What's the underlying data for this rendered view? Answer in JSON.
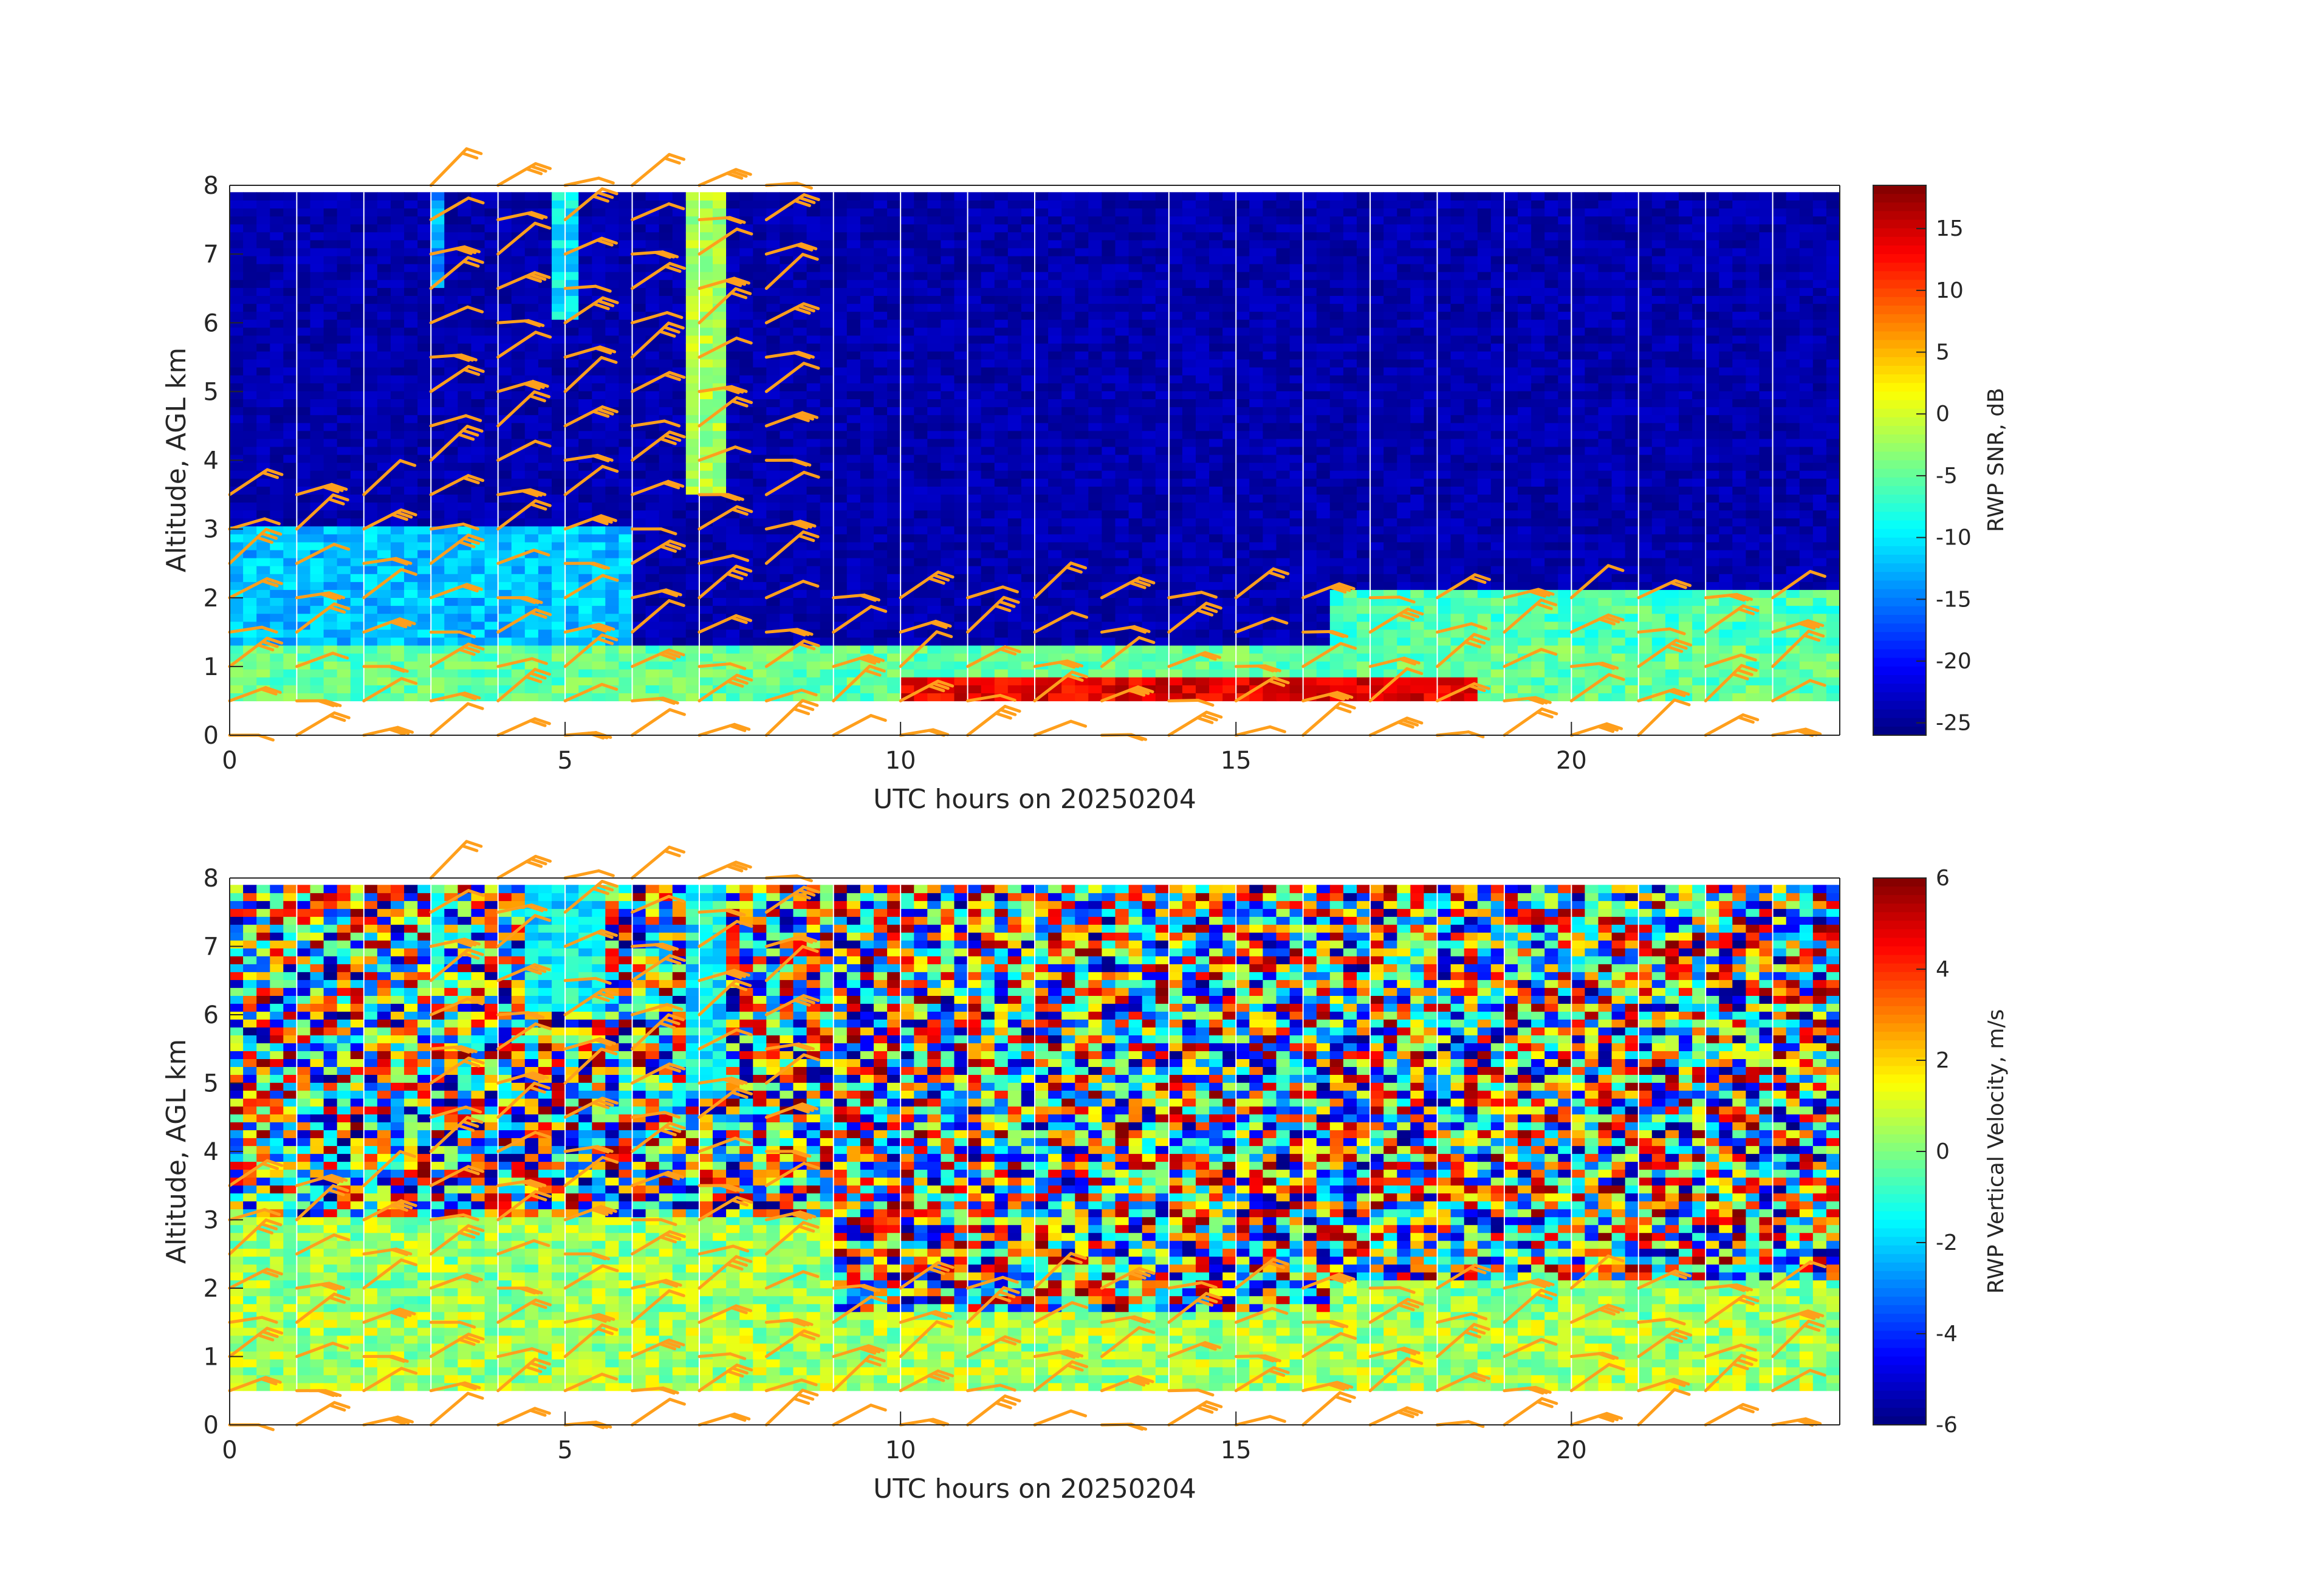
{
  "chart_data": [
    {
      "type": "heatmap",
      "title": "",
      "xlabel": "UTC hours on 20250204",
      "ylabel": "Altitude, AGL km",
      "xlim": [
        0,
        24
      ],
      "ylim": [
        0,
        8
      ],
      "x_ticks": [
        "0",
        "5",
        "10",
        "15",
        "20"
      ],
      "y_ticks": [
        "0",
        "1",
        "2",
        "3",
        "4",
        "5",
        "6",
        "7",
        "8"
      ],
      "data_altitude_range_km": [
        0.5,
        7.9
      ],
      "colorbar": {
        "label": "RWP SNR, dB",
        "range": [
          -26,
          18.5
        ],
        "ticks": [
          "15",
          "10",
          "5",
          "0",
          "-5",
          "-10",
          "-15",
          "-20",
          "-25"
        ],
        "tick_values": [
          15,
          10,
          5,
          0,
          -5,
          -10,
          -15,
          -20,
          -25
        ],
        "colormap": "jet"
      },
      "background_value": -24,
      "features": [
        {
          "feature": "boundary layer (high SNR)",
          "x": [
            0,
            24
          ],
          "y": [
            0.5,
            1.3
          ],
          "value": -5
        },
        {
          "feature": "strong layer (SNR max)",
          "x": [
            10,
            18.5
          ],
          "y": [
            0.5,
            0.8
          ],
          "value": 14
        },
        {
          "feature": "elevated layer",
          "x": [
            16.5,
            24
          ],
          "y": [
            1.3,
            2.1
          ],
          "value": -6
        },
        {
          "feature": "layers before 6 UTC",
          "x": [
            0,
            6
          ],
          "y": [
            1.3,
            3.0
          ],
          "value": -12
        },
        {
          "feature": "echo column",
          "x": [
            6.8,
            7.4
          ],
          "y": [
            3.5,
            7.9
          ],
          "value": -2
        },
        {
          "feature": "echo column",
          "x": [
            4.8,
            5.3
          ],
          "y": [
            6.0,
            7.9
          ],
          "value": -10
        },
        {
          "feature": "echo column",
          "x": [
            3.0,
            3.3
          ],
          "y": [
            6.5,
            7.9
          ],
          "value": -13
        }
      ]
    },
    {
      "type": "heatmap",
      "title": "",
      "xlabel": "UTC hours on 20250204",
      "ylabel": "Altitude, AGL km",
      "xlim": [
        0,
        24
      ],
      "ylim": [
        0,
        8
      ],
      "x_ticks": [
        "0",
        "5",
        "10",
        "15",
        "20"
      ],
      "y_ticks": [
        "0",
        "1",
        "2",
        "3",
        "4",
        "5",
        "6",
        "7",
        "8"
      ],
      "data_altitude_range_km": [
        0.5,
        7.9
      ],
      "colorbar": {
        "label": "RWP Vertical Velocity, m/s",
        "range": [
          -6,
          6
        ],
        "ticks": [
          "6",
          "4",
          "2",
          "0",
          "-2",
          "-4",
          "-6"
        ],
        "tick_values": [
          6,
          4,
          2,
          0,
          -2,
          -4,
          -6
        ],
        "colormap": "jet"
      },
      "background": "random noise, -6 to 6 m/s",
      "features": [
        {
          "feature": "near-zero velocity layer",
          "x": [
            0,
            24
          ],
          "y": [
            0.5,
            1.6
          ],
          "value": 0.5
        },
        {
          "feature": "near-zero velocity layer",
          "x": [
            0,
            9
          ],
          "y": [
            1.6,
            3.0
          ],
          "value": 0.3
        },
        {
          "feature": "near-zero velocity layer",
          "x": [
            16.5,
            24
          ],
          "y": [
            1.5,
            2.1
          ],
          "value": 0.2
        },
        {
          "feature": "descending echo column",
          "x": [
            6.8,
            7.4
          ],
          "y": [
            4.8,
            7.9
          ],
          "value": -1.5
        },
        {
          "feature": "descending echo column",
          "x": [
            4.5,
            5.5
          ],
          "y": [
            6.0,
            7.9
          ],
          "value": -1.5
        },
        {
          "feature": "descending echo column",
          "x": [
            3.0,
            3.3
          ],
          "y": [
            6.5,
            7.9
          ],
          "value": -1.5
        }
      ]
    }
  ],
  "wind_barbs": {
    "color": "#ff9f1c",
    "description": "wind barbs plotted hourly at selected altitudes",
    "hours": [
      0,
      1,
      2,
      3,
      4,
      5,
      6,
      7,
      8,
      9,
      10,
      11,
      12,
      13,
      14,
      15,
      16,
      17,
      18,
      19,
      20,
      21,
      22,
      23
    ],
    "altitudes_km": [
      0,
      0.5,
      1,
      1.5,
      2,
      2.5,
      3,
      3.5,
      4,
      4.5,
      5,
      5.5,
      6,
      6.5,
      7,
      7.5,
      8
    ]
  },
  "hour_gridlines": [
    1,
    2,
    3,
    4,
    5,
    6,
    7,
    9,
    10,
    11,
    12,
    14,
    15,
    16,
    17,
    18,
    19,
    20,
    21,
    22,
    23
  ]
}
